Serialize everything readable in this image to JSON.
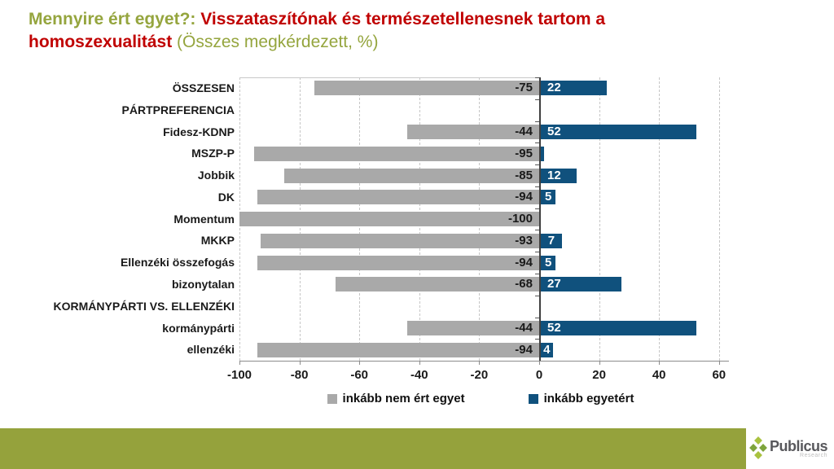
{
  "title": {
    "part1": "Mennyire ért egyet?: ",
    "part2": "Visszataszítónak és természetellenesnek tartom a homoszexualitást",
    "part3": " (Összes megkérdezett, %)"
  },
  "legend": {
    "disagree": "inkább nem ért egyet",
    "agree": "inkább egyetért"
  },
  "footer": {
    "brand": "Publicus",
    "sub": "Research"
  },
  "colors": {
    "bar_gray": "#A9A9A9",
    "bar_blue": "#10517D",
    "title_olive": "#95A53E",
    "title_red": "#C00000",
    "footer_olive": "#95A23C",
    "logo_green_dark": "#7EA43C",
    "logo_green_light": "#A9C23F"
  },
  "chart_data": {
    "type": "bar",
    "orientation": "horizontal-diverging",
    "title": "Mennyire ért egyet?: Visszataszítónak és természetellenesnek tartom a homoszexualitást (Összes megkérdezett, %)",
    "categories": [
      "ÖSSZESEN",
      "PÁRTPREFERENCIA",
      "Fidesz-KDNP",
      "MSZP-P",
      "Jobbik",
      "DK",
      "Momentum",
      "MKKP",
      "Ellenzéki összefogás",
      "bizonytalan",
      "KORMÁNYPÁRTI VS. ELLENZÉKI",
      "kormánypárti",
      "ellenzéki"
    ],
    "series": [
      {
        "name": "inkább nem ért egyet",
        "color": "#A9A9A9",
        "values": [
          -75,
          null,
          -44,
          -95,
          -85,
          -94,
          -100,
          -93,
          -94,
          -68,
          null,
          -44,
          -94
        ],
        "labels": [
          "-75",
          "",
          "-44",
          "-95",
          "-85",
          "-94",
          "-100",
          "-93",
          "-94",
          "-68",
          "",
          "-44",
          "-94"
        ]
      },
      {
        "name": "inkább egyetért",
        "color": "#10517D",
        "values": [
          22,
          null,
          52,
          1,
          12,
          5,
          null,
          7,
          5,
          27,
          null,
          52,
          4
        ],
        "labels": [
          "22",
          "",
          "52",
          "",
          "12",
          "5",
          "",
          "7",
          "5",
          "27",
          "",
          "52",
          "4"
        ]
      }
    ],
    "xlim": [
      -100,
      60
    ],
    "xticks": [
      -100,
      -80,
      -60,
      -40,
      -20,
      0,
      20,
      40,
      60
    ],
    "grid": "vertical-dashed",
    "legend_position": "bottom"
  }
}
